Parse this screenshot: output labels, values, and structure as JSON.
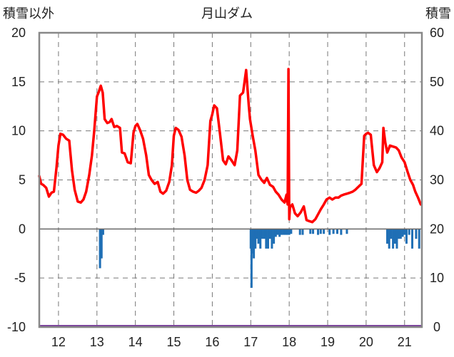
{
  "chart_data": {
    "type": "line",
    "title": "月山ダム",
    "left_axis_label": "積雪以外",
    "right_axis_label": "積雪",
    "left_ylim": [
      -10,
      20
    ],
    "left_ticks": [
      -10,
      -5,
      0,
      5,
      10,
      15,
      20
    ],
    "right_ylim": [
      0,
      60
    ],
    "right_ticks": [
      0,
      10,
      20,
      30,
      40,
      50,
      60
    ],
    "xlim": [
      11.5,
      21.45
    ],
    "x_ticks": [
      12,
      13,
      14,
      15,
      16,
      17,
      18,
      19,
      20,
      21
    ],
    "x_tick_labels": [
      "12",
      "13",
      "14",
      "15",
      "16",
      "17",
      "18",
      "19",
      "20",
      "21"
    ],
    "grid": true,
    "colors": {
      "line": "#ff0000",
      "bars": "#1f6fb5",
      "baseline": "#7b3f9e",
      "frame": "#888888"
    },
    "series": [
      {
        "type": "line",
        "axis": "left",
        "x": [
          11.5,
          11.55,
          11.6,
          11.68,
          11.75,
          11.82,
          11.88,
          11.95,
          12.0,
          12.05,
          12.12,
          12.2,
          12.28,
          12.35,
          12.42,
          12.5,
          12.58,
          12.65,
          12.72,
          12.8,
          12.87,
          12.93,
          13.0,
          13.05,
          13.1,
          13.15,
          13.2,
          13.27,
          13.33,
          13.38,
          13.45,
          13.52,
          13.6,
          13.65,
          13.72,
          13.8,
          13.88,
          13.95,
          14.0,
          14.05,
          14.12,
          14.2,
          14.28,
          14.35,
          14.42,
          14.5,
          14.58,
          14.65,
          14.72,
          14.8,
          14.88,
          14.95,
          15.0,
          15.05,
          15.12,
          15.2,
          15.28,
          15.35,
          15.42,
          15.5,
          15.58,
          15.65,
          15.72,
          15.8,
          15.88,
          15.95,
          16.0,
          16.05,
          16.12,
          16.2,
          16.28,
          16.35,
          16.42,
          16.5,
          16.58,
          16.65,
          16.72,
          16.8,
          16.88,
          16.95,
          16.98,
          17.05,
          17.12,
          17.2,
          17.28,
          17.35,
          17.42,
          17.5,
          17.58,
          17.65,
          17.72,
          17.8,
          17.88,
          17.93,
          17.96,
          17.98,
          18.0,
          18.02,
          18.08,
          18.15,
          18.22,
          18.3,
          18.38,
          18.45,
          18.52,
          18.6,
          18.68,
          18.75,
          18.82,
          18.9,
          18.97,
          19.05,
          19.12,
          19.2,
          19.28,
          19.35,
          19.42,
          19.5,
          19.58,
          19.65,
          19.72,
          19.8,
          19.88,
          19.95,
          20.0,
          20.05,
          20.12,
          20.2,
          20.28,
          20.35,
          20.42,
          20.45,
          20.5,
          20.55,
          20.62,
          20.7,
          20.78,
          20.85,
          20.92,
          21.0,
          21.08,
          21.15,
          21.22,
          21.28,
          21.35,
          21.42
        ],
        "y": [
          5.4,
          4.6,
          4.5,
          4.2,
          3.3,
          3.7,
          3.8,
          6.3,
          8.5,
          9.7,
          9.6,
          9.2,
          9.0,
          6.0,
          4.0,
          2.8,
          2.7,
          3.0,
          3.8,
          5.5,
          7.5,
          10.0,
          13.5,
          14.0,
          14.6,
          13.9,
          11.2,
          10.8,
          10.9,
          11.2,
          10.4,
          10.5,
          10.3,
          7.8,
          7.7,
          6.8,
          6.7,
          9.8,
          10.5,
          10.7,
          10.1,
          9.2,
          7.5,
          5.5,
          5.0,
          4.6,
          4.8,
          3.8,
          3.6,
          3.9,
          4.8,
          6.5,
          9.5,
          10.3,
          10.1,
          9.4,
          7.5,
          5.0,
          4.0,
          3.8,
          3.7,
          3.9,
          4.2,
          5.0,
          6.5,
          11.0,
          11.7,
          12.6,
          12.3,
          9.7,
          7.0,
          6.6,
          7.4,
          7.0,
          6.5,
          8.0,
          13.6,
          13.9,
          16.2,
          12.5,
          11.2,
          9.5,
          8.0,
          5.5,
          5.0,
          4.7,
          5.2,
          4.5,
          4.3,
          3.8,
          3.5,
          3.0,
          2.7,
          3.5,
          2.5,
          16.3,
          1.0,
          2.2,
          2.5,
          1.6,
          1.3,
          1.7,
          2.3,
          0.9,
          0.8,
          0.7,
          1.0,
          1.5,
          2.0,
          2.5,
          3.0,
          3.2,
          3.0,
          3.2,
          3.2,
          3.4,
          3.5,
          3.6,
          3.7,
          3.8,
          4.0,
          4.3,
          4.6,
          9.5,
          9.7,
          9.8,
          9.6,
          6.5,
          5.8,
          6.2,
          6.8,
          10.3,
          8.8,
          7.8,
          8.5,
          8.4,
          8.3,
          8.0,
          7.3,
          6.8,
          5.8,
          5.0,
          4.5,
          3.8,
          3.2,
          2.5
        ]
      },
      {
        "type": "bar",
        "axis": "left",
        "x": [
          13.08,
          13.12,
          13.16,
          17.0,
          17.02,
          17.05,
          17.08,
          17.12,
          17.16,
          17.2,
          17.25,
          17.3,
          17.35,
          17.4,
          17.45,
          17.5,
          17.55,
          17.6,
          17.65,
          17.7,
          17.75,
          17.8,
          17.85,
          17.9,
          17.95,
          18.0,
          18.05,
          18.28,
          18.35,
          18.55,
          18.62,
          18.75,
          18.82,
          18.9,
          19.05,
          19.15,
          19.25,
          19.35,
          19.5,
          20.55,
          20.6,
          20.65,
          20.7,
          20.75,
          20.8,
          20.85,
          20.9,
          20.95,
          21.0,
          21.05,
          21.12,
          21.2,
          21.3,
          21.38
        ],
        "y": [
          -4.0,
          -3.0,
          -0.6,
          -2.0,
          -6.0,
          -2.5,
          -3.0,
          -2.0,
          -1.0,
          -1.5,
          -2.0,
          -1.0,
          -1.0,
          -2.0,
          -2.0,
          -1.0,
          -2.0,
          -1.5,
          -0.8,
          -0.6,
          -0.8,
          -0.6,
          -0.6,
          -0.6,
          -0.6,
          -0.6,
          -0.5,
          -0.6,
          -0.6,
          -0.5,
          -0.5,
          -0.6,
          -0.5,
          -0.5,
          -0.6,
          -0.5,
          -0.5,
          -0.6,
          -0.5,
          -1.5,
          -2.0,
          -1.0,
          -2.0,
          -1.5,
          -2.0,
          -1.0,
          -1.0,
          -0.8,
          -0.6,
          -1.5,
          -0.6,
          -2.0,
          -1.0,
          -2.0
        ]
      }
    ]
  }
}
